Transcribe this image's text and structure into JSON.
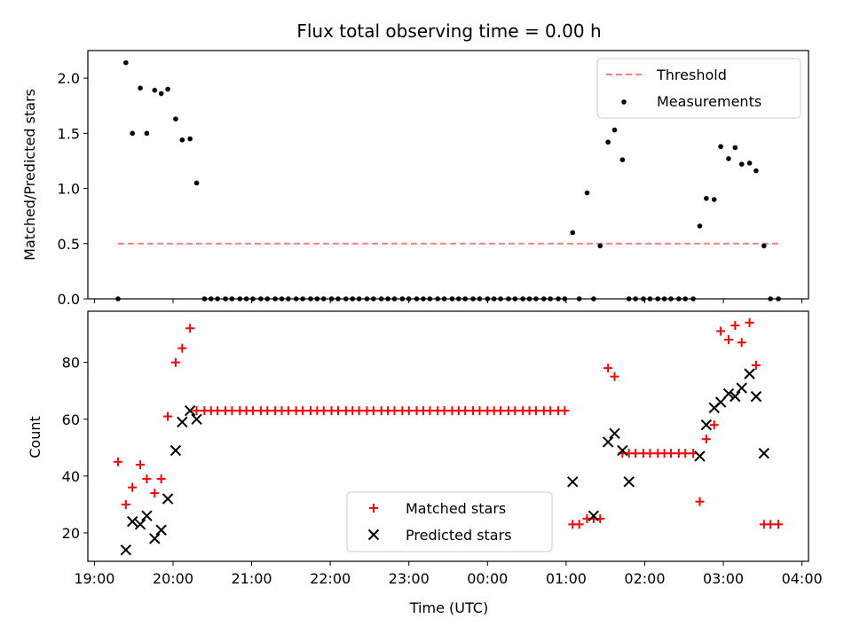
{
  "chart_data": [
    {
      "type": "scatter",
      "title": "Flux total observing time = 0.00 h",
      "xlabel": "",
      "ylabel": "Matched/Predicted stars",
      "ylim": [
        0,
        2.25
      ],
      "xlim": [
        "18:55",
        "04:05"
      ],
      "yticks": [
        "0.0",
        "0.5",
        "1.0",
        "1.5",
        "2.0"
      ],
      "legend": {
        "placement": "top-right",
        "entries": [
          "Threshold",
          "Measurements"
        ]
      },
      "colors": {
        "threshold": "#ff7f7f",
        "measurements": "#000000"
      },
      "series": [
        {
          "name": "Threshold",
          "kind": "line",
          "x": [
            "19:18",
            "03:42"
          ],
          "y": [
            0.5,
            0.5
          ]
        },
        {
          "name": "Measurements",
          "kind": "scatter",
          "x": [
            "19:18",
            "19:24",
            "19:29",
            "19:35",
            "19:40",
            "19:46",
            "19:51",
            "19:56",
            "20:02",
            "20:07",
            "20:13",
            "20:18",
            "20:24",
            "20:29",
            "20:34",
            "20:40",
            "20:45",
            "20:51",
            "20:56",
            "21:01",
            "21:07",
            "21:12",
            "21:18",
            "21:23",
            "21:28",
            "21:34",
            "21:39",
            "21:45",
            "21:50",
            "21:55",
            "22:01",
            "22:06",
            "22:12",
            "22:17",
            "22:22",
            "22:28",
            "22:33",
            "22:39",
            "22:44",
            "22:49",
            "22:55",
            "23:00",
            "23:06",
            "23:11",
            "23:16",
            "23:22",
            "23:27",
            "23:33",
            "23:38",
            "23:43",
            "23:49",
            "23:54",
            "00:00",
            "00:05",
            "00:10",
            "00:16",
            "00:21",
            "00:27",
            "00:32",
            "00:37",
            "00:43",
            "00:48",
            "00:54",
            "00:59",
            "01:05",
            "01:10",
            "01:16",
            "01:21",
            "01:26",
            "01:32",
            "01:37",
            "01:43",
            "01:48",
            "01:53",
            "01:59",
            "02:04",
            "02:10",
            "02:15",
            "02:20",
            "02:26",
            "02:31",
            "02:37",
            "02:42",
            "02:47",
            "02:53",
            "02:58",
            "03:04",
            "03:09",
            "03:14",
            "03:20",
            "03:25",
            "03:31",
            "03:36",
            "03:42"
          ],
          "y": [
            0.0,
            2.14,
            1.5,
            1.91,
            1.5,
            1.89,
            1.86,
            1.9,
            1.63,
            1.44,
            1.45,
            1.05,
            0,
            0,
            0,
            0,
            0,
            0,
            0,
            0,
            0,
            0,
            0,
            0,
            0,
            0,
            0,
            0,
            0,
            0,
            0,
            0,
            0,
            0,
            0,
            0,
            0,
            0,
            0,
            0,
            0,
            0,
            0,
            0,
            0,
            0,
            0,
            0,
            0,
            0,
            0,
            0,
            0,
            0,
            0,
            0,
            0,
            0,
            0,
            0,
            0,
            0,
            0,
            0,
            0.6,
            0,
            0.96,
            0,
            0.48,
            1.42,
            1.53,
            1.26,
            0,
            0,
            0,
            0,
            0,
            0,
            0,
            0,
            0,
            0,
            0.66,
            0.91,
            0.9,
            1.38,
            1.27,
            1.37,
            1.22,
            1.23,
            1.16,
            0.48,
            0,
            0
          ]
        }
      ]
    },
    {
      "type": "scatter",
      "title": "",
      "xlabel": "Time (UTC)",
      "ylabel": "Count",
      "ylim": [
        10,
        98
      ],
      "xlim": [
        "18:55",
        "04:05"
      ],
      "xticks": [
        "19:00",
        "20:00",
        "21:00",
        "22:00",
        "23:00",
        "00:00",
        "01:00",
        "02:00",
        "03:00",
        "04:00"
      ],
      "yticks": [
        "20",
        "40",
        "60",
        "80"
      ],
      "legend": {
        "placement": "bottom-center",
        "entries": [
          "Matched stars",
          "Predicted stars"
        ]
      },
      "colors": {
        "matched": "#ff0000",
        "predicted": "#000000"
      },
      "series": [
        {
          "name": "Matched stars",
          "marker": "plus",
          "x": [
            "19:18",
            "19:24",
            "19:29",
            "19:35",
            "19:40",
            "19:46",
            "19:51",
            "19:56",
            "20:02",
            "20:07",
            "20:13",
            "20:18",
            "20:24",
            "20:29",
            "20:34",
            "20:40",
            "20:45",
            "20:51",
            "20:56",
            "21:01",
            "21:07",
            "21:12",
            "21:18",
            "21:23",
            "21:28",
            "21:34",
            "21:39",
            "21:45",
            "21:50",
            "21:55",
            "22:01",
            "22:06",
            "22:12",
            "22:17",
            "22:22",
            "22:28",
            "22:33",
            "22:39",
            "22:44",
            "22:49",
            "22:55",
            "23:00",
            "23:06",
            "23:11",
            "23:16",
            "23:22",
            "23:27",
            "23:33",
            "23:38",
            "23:43",
            "23:49",
            "23:54",
            "00:00",
            "00:05",
            "00:10",
            "00:16",
            "00:21",
            "00:27",
            "00:32",
            "00:37",
            "00:43",
            "00:48",
            "00:54",
            "00:59",
            "01:05",
            "01:10",
            "01:16",
            "01:21",
            "01:26",
            "01:32",
            "01:37",
            "01:43",
            "01:48",
            "01:53",
            "01:59",
            "02:04",
            "02:10",
            "02:15",
            "02:20",
            "02:26",
            "02:31",
            "02:37",
            "02:42",
            "02:47",
            "02:53",
            "02:58",
            "03:04",
            "03:09",
            "03:14",
            "03:20",
            "03:25",
            "03:31",
            "03:36",
            "03:42"
          ],
          "y": [
            45,
            30,
            36,
            44,
            39,
            34,
            39,
            61,
            80,
            85,
            92,
            63,
            63,
            63,
            63,
            63,
            63,
            63,
            63,
            63,
            63,
            63,
            63,
            63,
            63,
            63,
            63,
            63,
            63,
            63,
            63,
            63,
            63,
            63,
            63,
            63,
            63,
            63,
            63,
            63,
            63,
            63,
            63,
            63,
            63,
            63,
            63,
            63,
            63,
            63,
            63,
            63,
            63,
            63,
            63,
            63,
            63,
            63,
            63,
            63,
            63,
            63,
            63,
            63,
            23,
            23,
            25,
            25,
            25,
            78,
            75,
            48,
            48,
            48,
            48,
            48,
            48,
            48,
            48,
            48,
            48,
            48,
            31,
            53,
            58,
            91,
            88,
            93,
            87,
            94,
            79,
            23,
            23,
            23
          ]
        },
        {
          "name": "Predicted stars",
          "marker": "x",
          "x": [
            "19:24",
            "19:29",
            "19:35",
            "19:40",
            "19:46",
            "19:51",
            "19:56",
            "20:02",
            "20:07",
            "20:13",
            "20:18",
            "01:05",
            "01:21",
            "01:32",
            "01:37",
            "01:43",
            "01:48",
            "02:42",
            "02:47",
            "02:53",
            "02:58",
            "03:04",
            "03:09",
            "03:14",
            "03:20",
            "03:25",
            "03:31"
          ],
          "y": [
            14,
            24,
            23,
            26,
            18,
            21,
            32,
            49,
            59,
            63,
            60,
            38,
            26,
            52,
            55,
            49,
            38,
            47,
            58,
            64,
            66,
            69,
            68,
            71,
            76,
            68,
            48
          ]
        }
      ]
    }
  ]
}
